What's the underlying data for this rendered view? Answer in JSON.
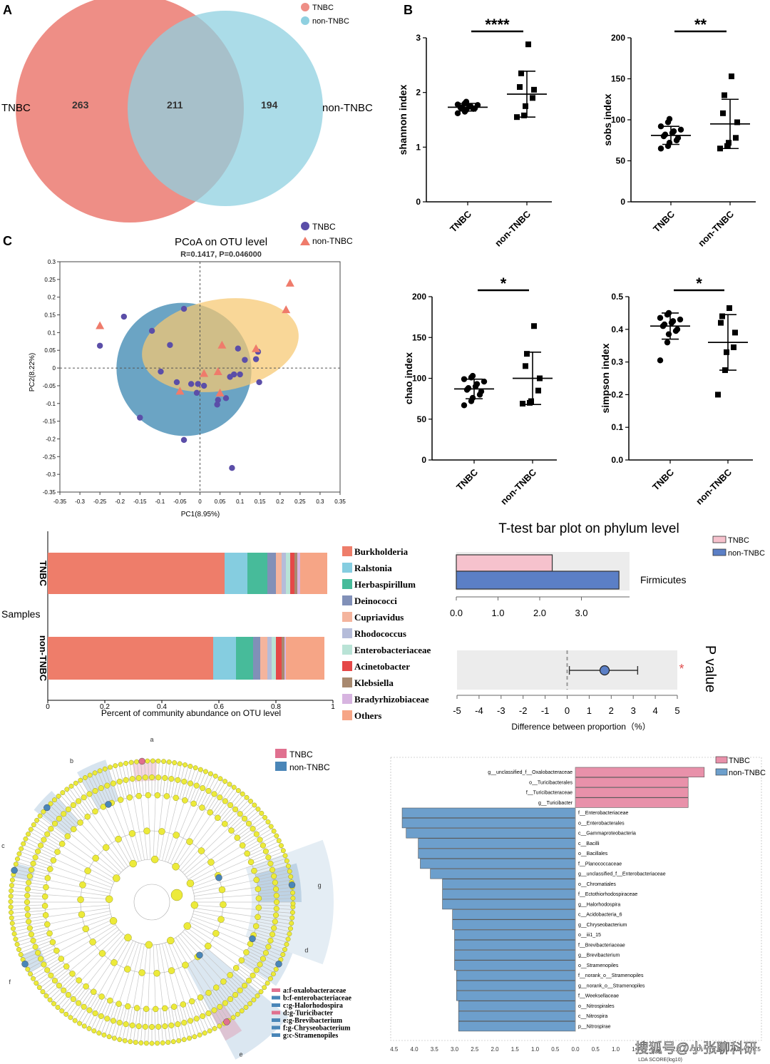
{
  "panel_labels": {
    "a": "A",
    "b": "B",
    "c": "C"
  },
  "venn": {
    "left_label": "TNBC",
    "right_label": "non-TNBC",
    "left_only": "263",
    "shared": "211",
    "right_only": "194",
    "legend": [
      "TNBC",
      "non-TNBC"
    ],
    "colors": {
      "tnbc": "#ee8e86",
      "non_tnbc": "#8fd0e0"
    }
  },
  "watermark": "搜狐号@小张聊科研",
  "chart_data": [
    {
      "id": "shannon",
      "type": "scatter",
      "ylabel": "shannon index",
      "ylim": [
        0,
        3
      ],
      "yticks": [
        "0",
        "1",
        "2",
        "3"
      ],
      "categories": [
        "TNBC",
        "non-TNBC"
      ],
      "significance": "****",
      "series": [
        {
          "name": "TNBC",
          "marker": "circle",
          "mean": 1.73,
          "sd": 0.07,
          "values": [
            1.62,
            1.65,
            1.68,
            1.7,
            1.71,
            1.72,
            1.73,
            1.74,
            1.75,
            1.77,
            1.78,
            1.8,
            1.83
          ]
        },
        {
          "name": "non-TNBC",
          "marker": "square",
          "mean": 1.97,
          "sd": 0.42,
          "values": [
            1.55,
            1.58,
            1.75,
            1.9,
            2.05,
            2.1,
            2.35,
            2.88
          ]
        }
      ]
    },
    {
      "id": "sobs",
      "type": "scatter",
      "ylabel": "sobs index",
      "ylim": [
        0,
        200
      ],
      "yticks": [
        "0",
        "50",
        "100",
        "150",
        "200"
      ],
      "categories": [
        "TNBC",
        "non-TNBC"
      ],
      "significance": "**",
      "series": [
        {
          "name": "TNBC",
          "marker": "circle",
          "mean": 81,
          "sd": 11,
          "values": [
            65,
            68,
            72,
            75,
            78,
            80,
            82,
            84,
            86,
            88,
            92,
            97,
            101
          ]
        },
        {
          "name": "non-TNBC",
          "marker": "square",
          "mean": 95,
          "sd": 30,
          "values": [
            65,
            68,
            72,
            78,
            97,
            108,
            130,
            153
          ]
        }
      ]
    },
    {
      "id": "chao",
      "type": "scatter",
      "ylabel": "chao index",
      "ylim": [
        0,
        200
      ],
      "yticks": [
        "0",
        "50",
        "100",
        "150",
        "200"
      ],
      "categories": [
        "TNBC",
        "non-TNBC"
      ],
      "significance": "*",
      "series": [
        {
          "name": "TNBC",
          "marker": "circle",
          "mean": 87,
          "sd": 12,
          "values": [
            67,
            72,
            76,
            80,
            84,
            86,
            88,
            90,
            93,
            96,
            99,
            101,
            103
          ]
        },
        {
          "name": "non-TNBC",
          "marker": "square",
          "mean": 100,
          "sd": 32,
          "values": [
            69,
            70,
            72,
            85,
            100,
            115,
            130,
            164
          ]
        }
      ]
    },
    {
      "id": "simpson",
      "type": "scatter",
      "ylabel": "simpson index",
      "ylim": [
        0,
        0.5
      ],
      "yticks": [
        "0.0",
        "0.1",
        "0.2",
        "0.3",
        "0.4",
        "0.5"
      ],
      "categories": [
        "TNBC",
        "non-TNBC"
      ],
      "significance": "*",
      "series": [
        {
          "name": "TNBC",
          "marker": "circle",
          "mean": 0.41,
          "sd": 0.04,
          "values": [
            0.305,
            0.36,
            0.385,
            0.395,
            0.4,
            0.41,
            0.415,
            0.42,
            0.425,
            0.43,
            0.435,
            0.445,
            0.45
          ]
        },
        {
          "name": "non-TNBC",
          "marker": "square",
          "mean": 0.36,
          "sd": 0.085,
          "values": [
            0.2,
            0.275,
            0.33,
            0.345,
            0.39,
            0.42,
            0.44,
            0.465
          ]
        }
      ]
    },
    {
      "id": "pcoa",
      "type": "scatter",
      "title": "PCoA on OTU level",
      "subtitle": "R=0.1417, P=0.046000",
      "xlabel": "PC1(8.95%)",
      "ylabel": "PC2(8.22%)",
      "xlim": [
        -0.35,
        0.35
      ],
      "ylim": [
        -0.35,
        0.3
      ],
      "xticks": [
        "-0.35",
        "-0.3",
        "-0.25",
        "-0.2",
        "-0.15",
        "-0.1",
        "-0.05",
        "0",
        "0.05",
        "0.1",
        "0.15",
        "0.2",
        "0.25",
        "0.3",
        "0.35"
      ],
      "yticks": [
        "0.3",
        "0.25",
        "0.2",
        "0.15",
        "0.1",
        "0.05",
        "0",
        "-0.05",
        "-0.1",
        "-0.15",
        "-0.2",
        "-0.25",
        "-0.3",
        "-0.35"
      ],
      "legend": [
        "TNBC",
        "non-TNBC"
      ],
      "series": [
        {
          "name": "TNBC",
          "marker": "circle",
          "color": "#5b4ea8",
          "points": [
            [
              -0.25,
              0.063
            ],
            [
              -0.19,
              0.145
            ],
            [
              -0.15,
              -0.14
            ],
            [
              -0.12,
              0.105
            ],
            [
              -0.098,
              -0.01
            ],
            [
              -0.075,
              0.065
            ],
            [
              -0.04,
              0.167
            ],
            [
              -0.058,
              -0.04
            ],
            [
              -0.04,
              -0.203
            ],
            [
              -0.022,
              -0.045
            ],
            [
              -0.008,
              -0.07
            ],
            [
              0.043,
              -0.103
            ],
            [
              0.045,
              -0.09
            ],
            [
              0.065,
              -0.085
            ],
            [
              0.1,
              -0.018
            ],
            [
              0.14,
              0.025
            ],
            [
              0.148,
              -0.04
            ],
            [
              0.145,
              0.046
            ],
            [
              0.112,
              0.023
            ],
            [
              0.095,
              0.055
            ],
            [
              0.01,
              -0.05
            ],
            [
              -0.005,
              -0.045
            ],
            [
              0.085,
              -0.018
            ],
            [
              0.075,
              -0.025
            ],
            [
              0.08,
              -0.282
            ]
          ]
        },
        {
          "name": "non-TNBC",
          "marker": "triangle",
          "color": "#ef7b6b",
          "points": [
            [
              -0.25,
              0.12
            ],
            [
              -0.05,
              -0.065
            ],
            [
              0.01,
              -0.015
            ],
            [
              0.045,
              -0.01
            ],
            [
              0.05,
              -0.07
            ],
            [
              0.055,
              0.065
            ],
            [
              0.14,
              0.055
            ],
            [
              0.215,
              0.165
            ],
            [
              0.225,
              0.24
            ]
          ]
        }
      ]
    },
    {
      "id": "community",
      "type": "bar",
      "orientation": "horizontal",
      "stacked": true,
      "xlabel": "Percent of community abundance on OTU level",
      "ylabel": "Samples",
      "xlim": [
        0,
        1
      ],
      "xticks": [
        "0",
        "0.2",
        "0.4",
        "0.6",
        "0.8",
        "1"
      ],
      "categories": [
        "TNBC",
        "non-TNBC"
      ],
      "series": [
        {
          "name": "Burkholderia",
          "color": "#ee7d6a",
          "values": [
            0.62,
            0.58
          ]
        },
        {
          "name": "Ralstonia",
          "color": "#85cde0",
          "values": [
            0.08,
            0.08
          ]
        },
        {
          "name": "Herbaspirillum",
          "color": "#47bb9a",
          "values": [
            0.07,
            0.06
          ]
        },
        {
          "name": "Deinococci",
          "color": "#8190b8",
          "values": [
            0.03,
            0.025
          ]
        },
        {
          "name": "Cupriavidus",
          "color": "#f4b49d",
          "values": [
            0.02,
            0.025
          ]
        },
        {
          "name": "Rhodococcus",
          "color": "#b5bcd9",
          "values": [
            0.015,
            0.015
          ]
        },
        {
          "name": "Enterobacteriaceae",
          "color": "#b9e3d6",
          "values": [
            0.015,
            0.015
          ]
        },
        {
          "name": "Acinetobacter",
          "color": "#e54848",
          "values": [
            0.015,
            0.02
          ]
        },
        {
          "name": "Klebsiella",
          "color": "#a8896f",
          "values": [
            0.01,
            0.01
          ]
        },
        {
          "name": "Bradyrhizobiaceae",
          "color": "#d7b4e0",
          "values": [
            0.01,
            0.005
          ]
        },
        {
          "name": "Others",
          "color": "#f6a586",
          "values": [
            0.095,
            0.135
          ]
        }
      ]
    },
    {
      "id": "ttest",
      "type": "bar",
      "orientation": "horizontal",
      "title": "T-test bar plot on phylum level",
      "categories": [
        "Firmicutes"
      ],
      "xlim": [
        0,
        4
      ],
      "xticks": [
        "0.0",
        "1.0",
        "2.0",
        "3.0"
      ],
      "series": [
        {
          "name": "TNBC",
          "color": "#f6c2cd",
          "values": [
            2.3
          ]
        },
        {
          "name": "non-TNBC",
          "color": "#5b7fc6",
          "values": [
            3.9
          ]
        }
      ],
      "difference": {
        "estimate": 1.7,
        "ci": [
          0.1,
          3.2
        ]
      },
      "xlabel": "Difference between proportion（%）",
      "diff_xlim": [
        -5,
        5
      ],
      "diff_xticks": [
        "-5",
        "-4",
        "-3",
        "-2",
        "-1",
        "0",
        "1",
        "2",
        "3",
        "4",
        "5"
      ],
      "p_label": "P value",
      "significance": "*"
    },
    {
      "id": "cladogram",
      "type": "other",
      "legend": [
        "TNBC",
        "non-TNBC"
      ],
      "colors": {
        "tnbc": "#e0708f",
        "non_tnbc": "#4a86b8",
        "node": "#ecea3a"
      },
      "sector_letters": [
        "a",
        "b",
        "c",
        "d",
        "e",
        "f",
        "g"
      ],
      "key": [
        {
          "text": "a:f-oxalobacteraceae",
          "group": "TNBC"
        },
        {
          "text": "b:f-enterobacteriaceae",
          "group": "non-TNBC"
        },
        {
          "text": "c:g-Halorhodospira",
          "group": "non-TNBC"
        },
        {
          "text": "d:g-Turicibacter",
          "group": "TNBC"
        },
        {
          "text": "e:g-Brevibacterium",
          "group": "non-TNBC"
        },
        {
          "text": "f:g-Chryseobacterium",
          "group": "non-TNBC"
        },
        {
          "text": "g:c-Stramenopiles",
          "group": "non-TNBC"
        }
      ]
    },
    {
      "id": "lda",
      "type": "bar",
      "orientation": "horizontal",
      "xlabel": "LDA SCORE(log10)",
      "xlim": [
        -4.5,
        4.5
      ],
      "xticks": [
        "4.5",
        "4.0",
        "3.5",
        "3.0",
        "2.5",
        "2.0",
        "1.5",
        "1.0",
        "0.5",
        "0.0",
        "0.5",
        "1.0",
        "1.5",
        "2.0",
        "2.5",
        "3.0",
        "3.5",
        "4.0",
        "4.5"
      ],
      "legend": [
        "TNBC",
        "non-TNBC"
      ],
      "colors": {
        "tnbc": "#e891aa",
        "non_tnbc": "#6d9fcc"
      },
      "rows": [
        {
          "label": "g__unclassified_f__Oxalobacteraceae",
          "group": "TNBC",
          "value": 3.2
        },
        {
          "label": "o__Turicibacterales",
          "group": "TNBC",
          "value": 2.8
        },
        {
          "label": "f__Turicibacteraceae",
          "group": "TNBC",
          "value": 2.8
        },
        {
          "label": "g__Turicibacter",
          "group": "TNBC",
          "value": 2.8
        },
        {
          "label": "f__Enterobacteriaceae",
          "group": "non-TNBC",
          "value": 4.3
        },
        {
          "label": "o__Enterobacterales",
          "group": "non-TNBC",
          "value": 4.3
        },
        {
          "label": "c__Gammaproteobacteria",
          "group": "non-TNBC",
          "value": 4.2
        },
        {
          "label": "c__Bacilli",
          "group": "non-TNBC",
          "value": 3.9
        },
        {
          "label": "o__Bacillales",
          "group": "non-TNBC",
          "value": 3.9
        },
        {
          "label": "f__Planococcaceae",
          "group": "non-TNBC",
          "value": 3.85
        },
        {
          "label": "g__unclassified_f__Enterobacteriaceae",
          "group": "non-TNBC",
          "value": 3.6
        },
        {
          "label": "o__Chromatiales",
          "group": "non-TNBC",
          "value": 3.3
        },
        {
          "label": "f__Ectothiorhodospiraceae",
          "group": "non-TNBC",
          "value": 3.3
        },
        {
          "label": "g__Halorhodospira",
          "group": "non-TNBC",
          "value": 3.3
        },
        {
          "label": "c__Acidobacteria_6",
          "group": "non-TNBC",
          "value": 3.05
        },
        {
          "label": "g__Chryseobacterium",
          "group": "non-TNBC",
          "value": 3.05
        },
        {
          "label": "o__iii1_15",
          "group": "non-TNBC",
          "value": 3.0
        },
        {
          "label": "f__Brevibacteriaceae",
          "group": "non-TNBC",
          "value": 3.0
        },
        {
          "label": "g__Brevibacterium",
          "group": "non-TNBC",
          "value": 3.0
        },
        {
          "label": "o__Stramenopiles",
          "group": "non-TNBC",
          "value": 3.0
        },
        {
          "label": "f__norank_o__Stramenopiles",
          "group": "non-TNBC",
          "value": 2.95
        },
        {
          "label": "g__norank_o__Stramenopiles",
          "group": "non-TNBC",
          "value": 2.95
        },
        {
          "label": "f__Weeksellaceae",
          "group": "non-TNBC",
          "value": 2.95
        },
        {
          "label": "o__Nitrospirales",
          "group": "non-TNBC",
          "value": 2.9
        },
        {
          "label": "c__Nitrospira",
          "group": "non-TNBC",
          "value": 2.9
        },
        {
          "label": "p__Nitrospirae",
          "group": "non-TNBC",
          "value": 2.9
        }
      ]
    }
  ]
}
